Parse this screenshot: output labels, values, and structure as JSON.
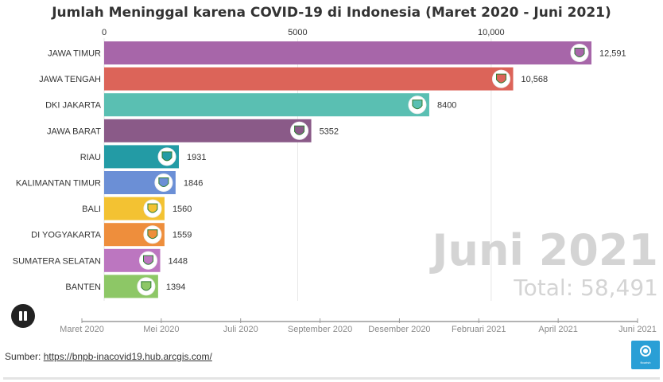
{
  "title": "Jumlah Meninggal karena COVID-19 di Indonesia (Maret 2020 - Juni 2021)",
  "source": {
    "label": "Sumber:",
    "link_text": "https://bnpb-inacovid19.hub.arcgis.com/"
  },
  "brand": {
    "label": "flourish"
  },
  "overlay": {
    "period": "Juni 2021",
    "total": "Total: 58,491"
  },
  "colors": {
    "text": "#333333",
    "grid": "#e6e6e6",
    "overlay": "#d4d4d4",
    "button": "#222222"
  },
  "chart_data": {
    "type": "bar",
    "orientation": "horizontal",
    "xlim": [
      0,
      12591
    ],
    "x_ticks": [
      0,
      5000,
      10000
    ],
    "x_tick_labels": [
      "0",
      "5000",
      "10,000"
    ],
    "grid": true,
    "categories": [
      "JAWA TIMUR",
      "JAWA TENGAH",
      "DKI JAKARTA",
      "JAWA BARAT",
      "RIAU",
      "KALIMANTAN TIMUR",
      "BALI",
      "DI YOGYAKARTA",
      "SUMATERA SELATAN",
      "BANTEN"
    ],
    "values": [
      12591,
      10568,
      8400,
      5352,
      1931,
      1846,
      1560,
      1559,
      1448,
      1394
    ],
    "value_labels": [
      "12,591",
      "10,568",
      "8400",
      "5352",
      "1931",
      "1846",
      "1560",
      "1559",
      "1448",
      "1394"
    ],
    "bar_colors": [
      "#a766a9",
      "#dc6459",
      "#5abfb2",
      "#8a5a88",
      "#239ba5",
      "#6b8fd6",
      "#f3c232",
      "#ee8e3c",
      "#bc76c0",
      "#8dc766"
    ],
    "timeline": {
      "labels": [
        "Maret 2020",
        "Mei 2020",
        "Juli 2020",
        "September 2020",
        "Desember 2020",
        "Februari 2021",
        "April 2021",
        "Juni 2021"
      ],
      "current": "Juni 2021"
    }
  }
}
